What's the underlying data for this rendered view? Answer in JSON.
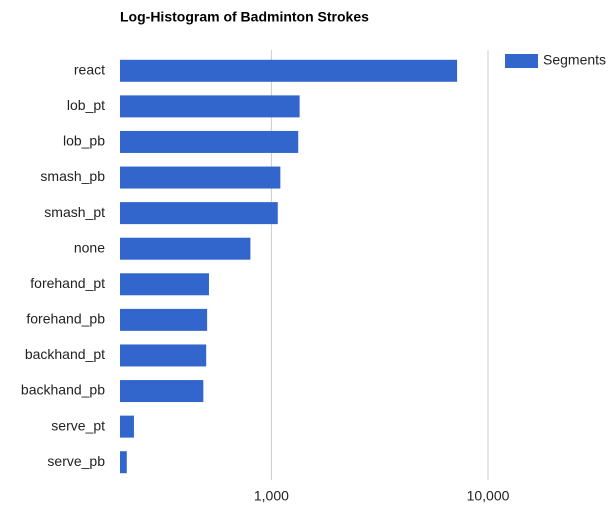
{
  "chart_data": {
    "type": "barh",
    "title": "Log-Histogram of Badminton Strokes",
    "categories": [
      "react",
      "lob_pt",
      "lob_pb",
      "smash_pb",
      "smash_pt",
      "none",
      "forehand_pt",
      "forehand_pb",
      "backhand_pt",
      "backhand_pb",
      "serve_pt",
      "serve_pb"
    ],
    "series": [
      {
        "name": "Segments",
        "color": "#3366cc",
        "values": [
          7200,
          1350,
          1330,
          1100,
          1070,
          800,
          515,
          505,
          500,
          485,
          232,
          215
        ]
      }
    ],
    "xlim": [
      200,
      10000
    ],
    "xscale": "log",
    "xticks": [
      {
        "value": 1000,
        "label": "1,000"
      },
      {
        "value": 10000,
        "label": "10,000"
      }
    ],
    "grid": true,
    "legend": "right"
  }
}
